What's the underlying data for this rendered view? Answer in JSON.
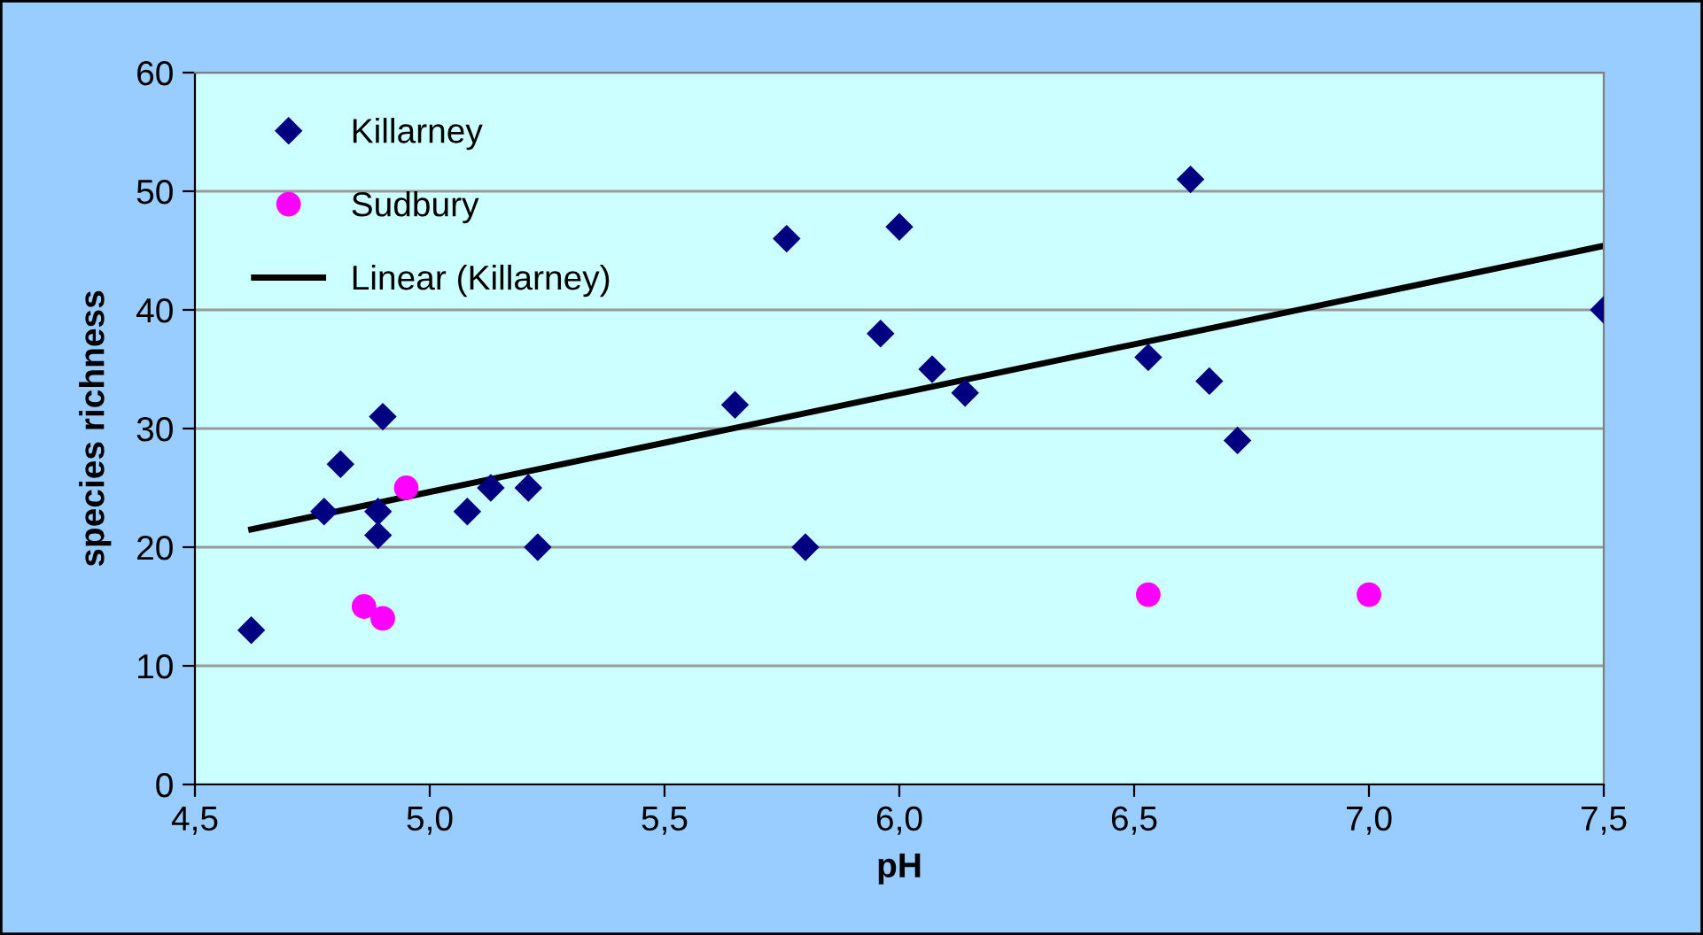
{
  "chart_data": {
    "type": "scatter",
    "xlabel": "pH",
    "ylabel": "species richness",
    "series": [
      {
        "name": "Killarney",
        "color": "#000080",
        "marker": "diamond",
        "x": [
          4.62,
          4.775,
          4.81,
          4.9,
          4.89,
          4.89,
          5.08,
          5.13,
          5.21,
          5.23,
          5.65,
          5.76,
          5.8,
          5.96,
          6.0,
          6.07,
          6.14,
          6.53,
          6.62,
          6.66,
          6.72,
          7.5
        ],
        "values": [
          13,
          23,
          27,
          31,
          23,
          21,
          23,
          25,
          25,
          20,
          32,
          46,
          20,
          38,
          47,
          35,
          33,
          36,
          51,
          34,
          29,
          40
        ]
      },
      {
        "name": "Sudbury",
        "color": "#ff00ff",
        "marker": "circle",
        "x": [
          4.86,
          4.9,
          4.95,
          6.53,
          7.0
        ],
        "values": [
          15,
          14,
          25,
          16,
          16
        ]
      },
      {
        "name": "Linear (Killarney)",
        "type": "line",
        "color": "#000000",
        "marker": "none",
        "line_style": "solid",
        "x": [
          4.62,
          7.5
        ],
        "values": [
          21.5,
          45.4
        ]
      }
    ],
    "xlim": [
      4.5,
      7.5
    ],
    "ylim": [
      0,
      60
    ],
    "xticks": [
      {
        "value": 4.5,
        "label": "4,5"
      },
      {
        "value": 5.0,
        "label": "5,0"
      },
      {
        "value": 5.5,
        "label": "5,5"
      },
      {
        "value": 6.0,
        "label": "6,0"
      },
      {
        "value": 6.5,
        "label": "6,5"
      },
      {
        "value": 7.0,
        "label": "7,0"
      },
      {
        "value": 7.5,
        "label": "7,5"
      }
    ],
    "yticks": [
      0,
      10,
      20,
      30,
      40,
      50,
      60
    ],
    "grid": "y",
    "legend": "top left"
  }
}
